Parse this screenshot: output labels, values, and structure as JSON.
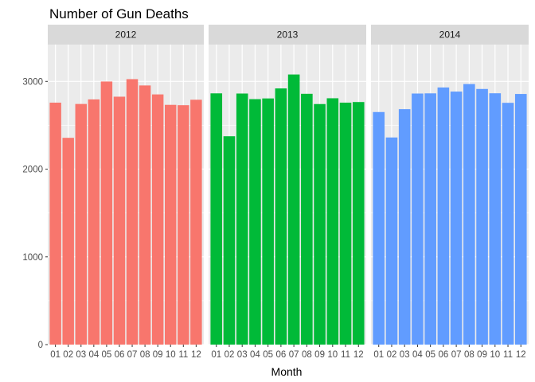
{
  "chart_data": {
    "type": "bar",
    "title": "Number of Gun Deaths",
    "xlabel": "Month",
    "ylabel": "",
    "ylim": [
      0,
      3420
    ],
    "yticks": [
      0,
      1000,
      2000,
      3000
    ],
    "grid": true,
    "legend": "none",
    "categories": [
      "01",
      "02",
      "03",
      "04",
      "05",
      "06",
      "07",
      "08",
      "09",
      "10",
      "11",
      "12"
    ],
    "series": [
      {
        "name": "2012",
        "color": "#F8766D",
        "values": [
          2758,
          2357,
          2743,
          2795,
          2999,
          2826,
          3026,
          2954,
          2852,
          2733,
          2729,
          2791
        ]
      },
      {
        "name": "2013",
        "color": "#00BA38",
        "values": [
          2864,
          2375,
          2862,
          2798,
          2806,
          2920,
          3079,
          2859,
          2742,
          2808,
          2758,
          2765
        ]
      },
      {
        "name": "2014",
        "color": "#619CFF",
        "values": [
          2651,
          2361,
          2684,
          2862,
          2864,
          2931,
          2884,
          2970,
          2914,
          2865,
          2756,
          2857
        ]
      }
    ]
  }
}
